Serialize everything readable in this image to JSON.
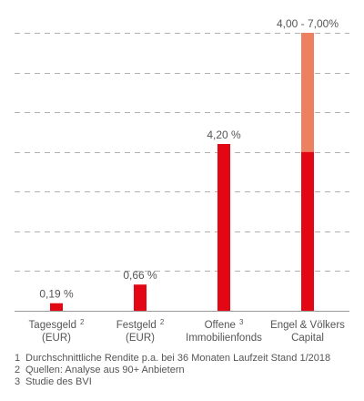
{
  "chart_data": {
    "type": "bar",
    "categories": [
      {
        "line1": "Tagesgeld",
        "sup": "2",
        "line2": "(EUR)"
      },
      {
        "line1": "Festgeld",
        "sup": "2",
        "line2": "(EUR)"
      },
      {
        "line1": "Offene",
        "sup": "3",
        "line2": "Immobilienfonds"
      },
      {
        "line1": "Engel & Völkers",
        "sup": "",
        "line2": "Capital"
      }
    ],
    "values": [
      0.19,
      0.66,
      4.2,
      4.0
    ],
    "range_top": [
      null,
      null,
      null,
      7.0
    ],
    "data_labels": [
      "0,19 %",
      "0,66 %",
      "4,20 %",
      "4,00 - 7,00%"
    ],
    "ylim": [
      0,
      7.0
    ],
    "grid": true,
    "colors": {
      "bar": "#e30613",
      "range": "#ee8062",
      "grid": "#b0b0b0",
      "axis": "#999999",
      "text": "#555555"
    }
  },
  "footnotes": [
    {
      "num": "1",
      "text": "Durchschnittliche Rendite p.a. bei 36 Monaten Laufzeit  Stand 1/2018"
    },
    {
      "num": "2",
      "text": "Quellen: Analyse aus 90+ Anbietern"
    },
    {
      "num": "3",
      "text": "Studie des BVI"
    }
  ]
}
